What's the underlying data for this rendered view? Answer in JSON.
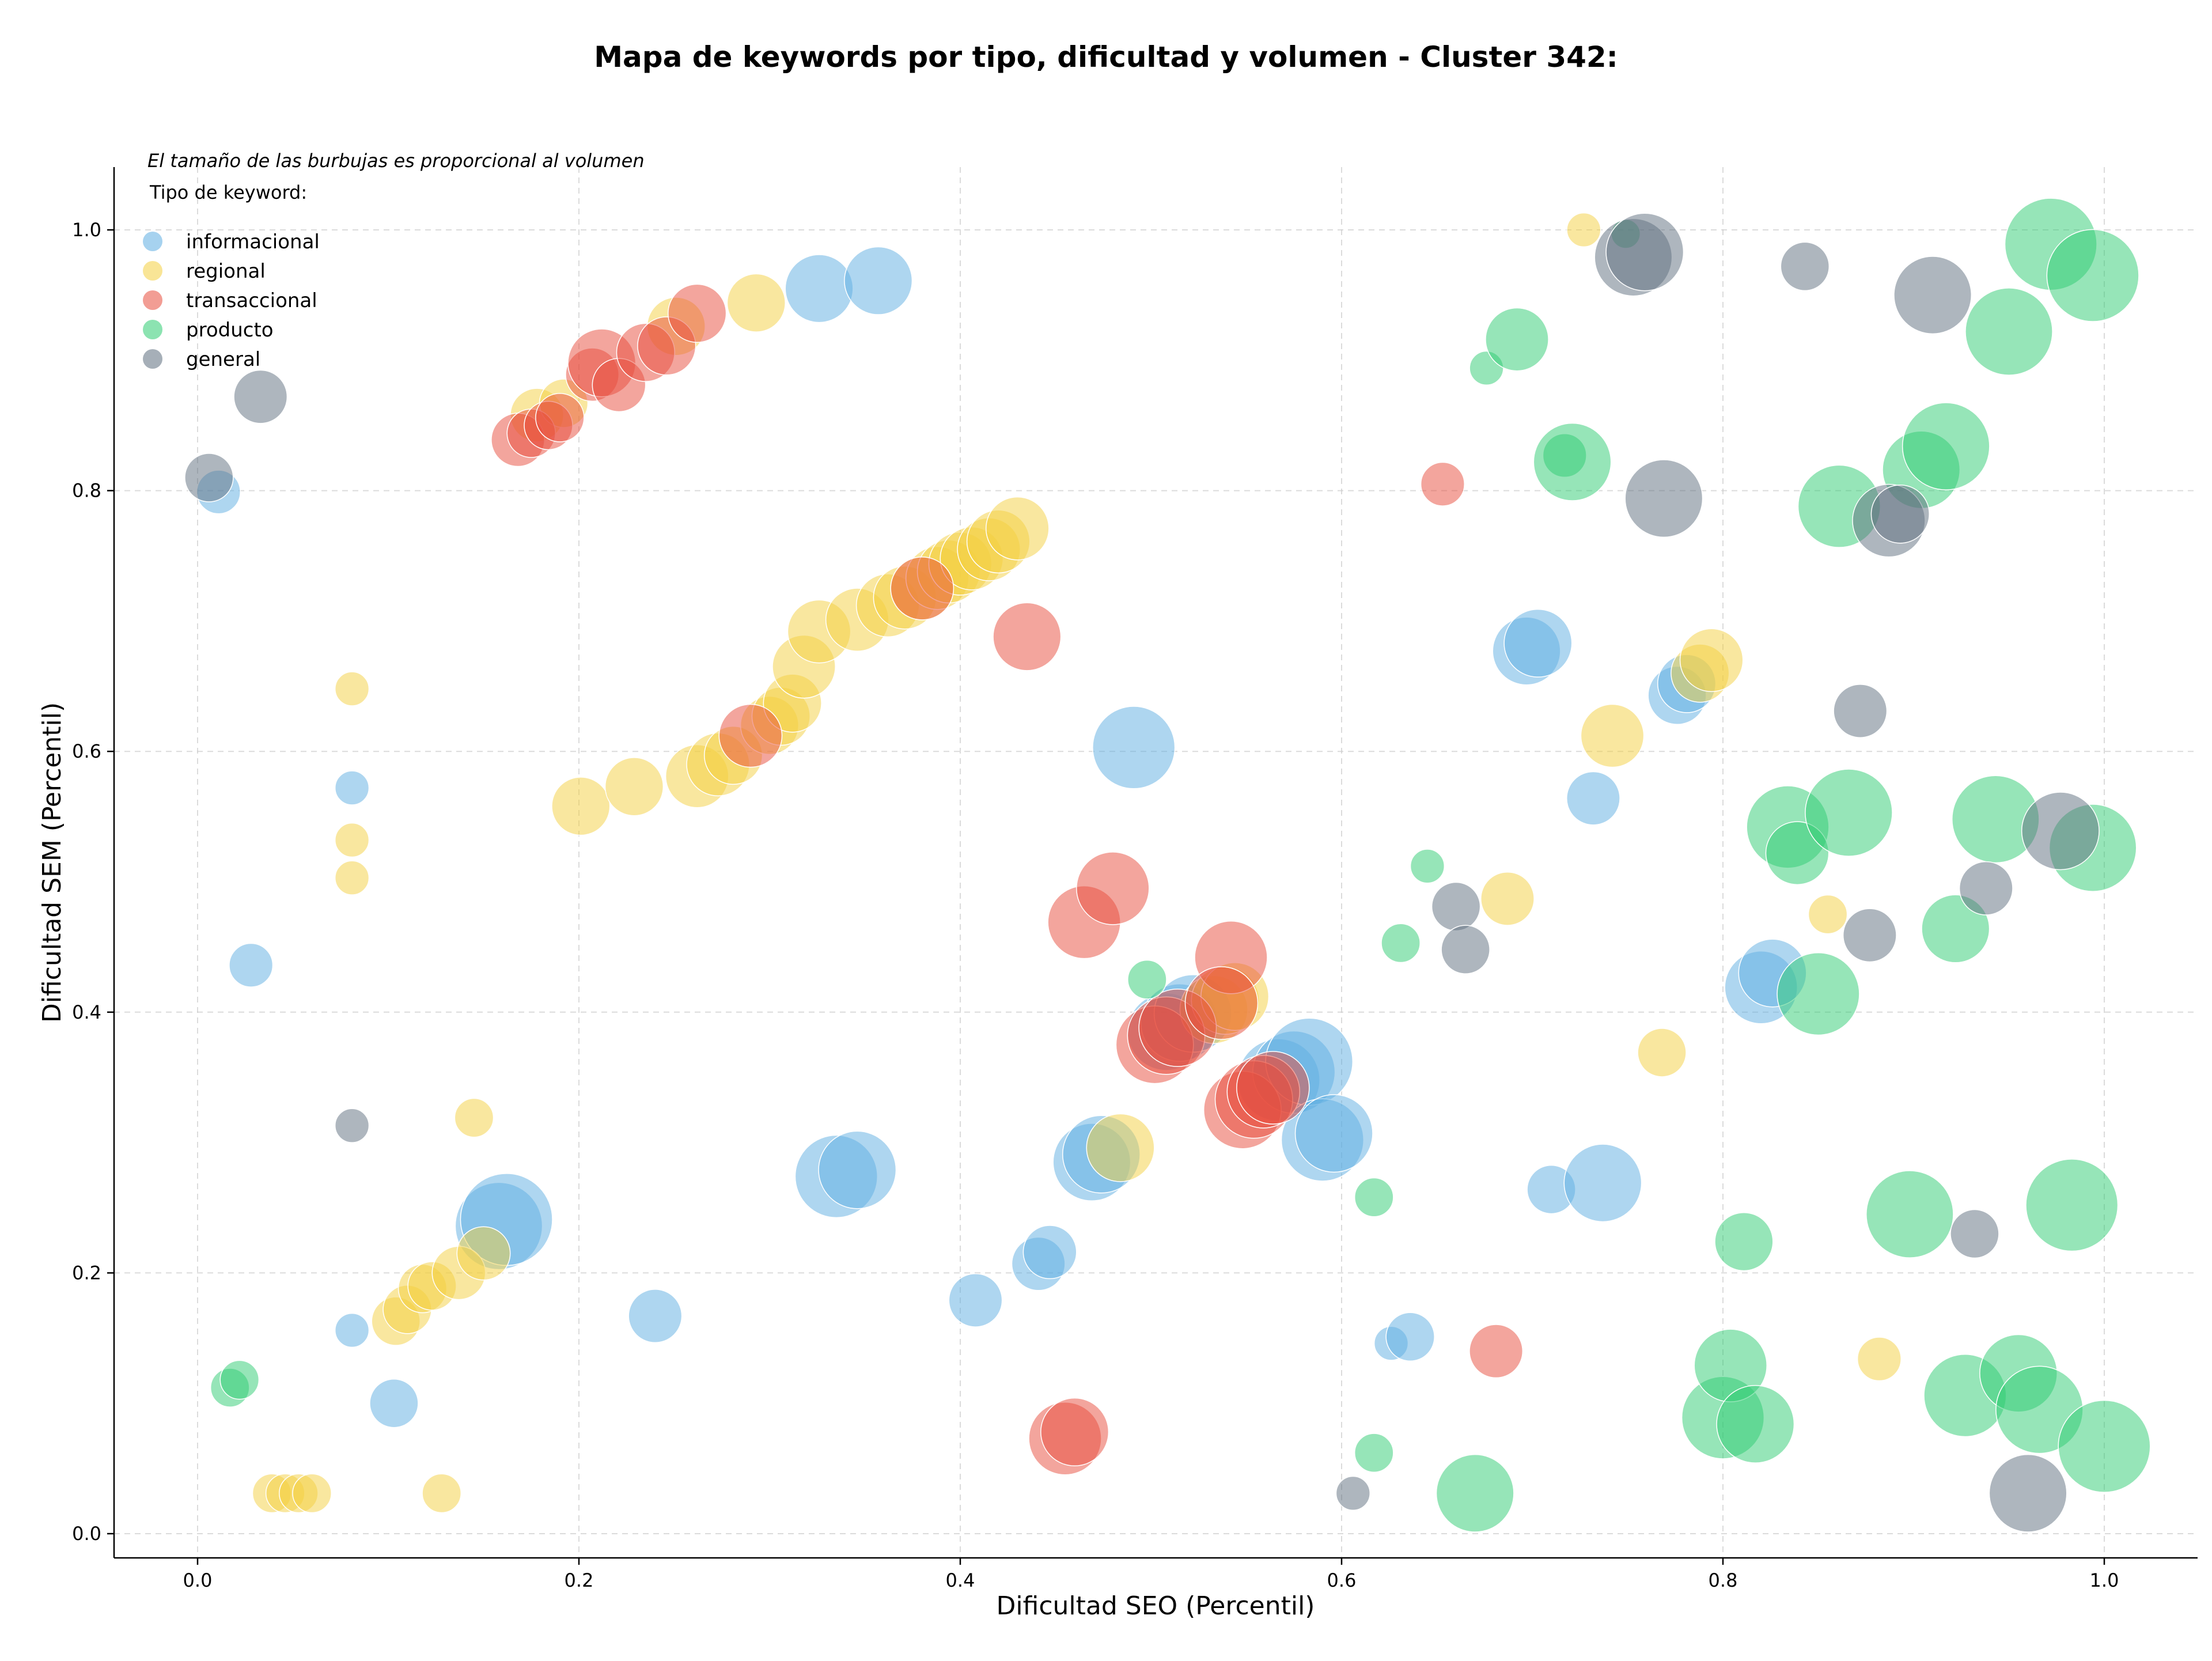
{
  "chart_data": {
    "type": "scatter",
    "title": "Mapa de keywords por tipo, dificultad y volumen - Cluster 342:",
    "xlabel": "Dificultad SEO (Percentil)",
    "ylabel": "Dificultad SEM (Percentil)",
    "xlim": [
      -0.045,
      1.05
    ],
    "ylim": [
      -0.015,
      1.05
    ],
    "xticks": [
      "0.0",
      "0.2",
      "0.4",
      "0.6",
      "0.8",
      "1.0"
    ],
    "yticks": [
      "0.0",
      "0.2",
      "0.4",
      "0.6",
      "0.8",
      "1.0"
    ],
    "grid": true,
    "note": "El tamaño de las burbujas es proporcional al volumen",
    "legend_title": "Tipo de keyword:",
    "legend_position": "top-left",
    "series": [
      {
        "name": "informacional",
        "color": "#5DADE2",
        "points": [
          [
            0.011,
            0.799,
            0.9
          ],
          [
            0.028,
            0.436,
            0.9
          ],
          [
            0.081,
            0.572,
            0.7
          ],
          [
            0.081,
            0.156,
            0.7
          ],
          [
            0.103,
            0.1,
            1.0
          ],
          [
            0.158,
            0.236,
            1.8
          ],
          [
            0.162,
            0.241,
            1.9
          ],
          [
            0.24,
            0.167,
            1.1
          ],
          [
            0.326,
            0.955,
            1.4
          ],
          [
            0.357,
            0.961,
            1.4
          ],
          [
            0.335,
            0.274,
            1.7
          ],
          [
            0.346,
            0.279,
            1.6
          ],
          [
            0.408,
            0.179,
            1.1
          ],
          [
            0.441,
            0.207,
            1.1
          ],
          [
            0.447,
            0.216,
            1.1
          ],
          [
            0.491,
            0.603,
            1.7
          ],
          [
            0.469,
            0.285,
            1.6
          ],
          [
            0.474,
            0.291,
            1.6
          ],
          [
            0.508,
            0.385,
            1.6
          ],
          [
            0.515,
            0.392,
            1.6
          ],
          [
            0.522,
            0.399,
            1.6
          ],
          [
            0.567,
            0.348,
            1.7
          ],
          [
            0.575,
            0.354,
            1.7
          ],
          [
            0.583,
            0.362,
            1.8
          ],
          [
            0.59,
            0.302,
            1.7
          ],
          [
            0.596,
            0.307,
            1.6
          ],
          [
            0.626,
            0.146,
            0.7
          ],
          [
            0.636,
            0.151,
            1.0
          ],
          [
            0.697,
            0.677,
            1.4
          ],
          [
            0.703,
            0.683,
            1.4
          ],
          [
            0.71,
            0.264,
            1.0
          ],
          [
            0.732,
            0.564,
            1.1
          ],
          [
            0.737,
            0.269,
            1.6
          ],
          [
            0.776,
            0.643,
            1.2
          ],
          [
            0.781,
            0.652,
            1.2
          ],
          [
            0.82,
            0.419,
            1.5
          ],
          [
            0.826,
            0.43,
            1.4
          ]
        ]
      },
      {
        "name": "regional",
        "color": "#F4D03F",
        "points": [
          [
            0.081,
            0.648,
            0.7
          ],
          [
            0.081,
            0.532,
            0.7
          ],
          [
            0.081,
            0.503,
            0.7
          ],
          [
            0.039,
            0.031,
            0.8
          ],
          [
            0.046,
            0.031,
            0.8
          ],
          [
            0.053,
            0.031,
            0.8
          ],
          [
            0.06,
            0.031,
            0.8
          ],
          [
            0.128,
            0.031,
            0.8
          ],
          [
            0.104,
            0.163,
            1.0
          ],
          [
            0.11,
            0.172,
            1.0
          ],
          [
            0.118,
            0.188,
            1.0
          ],
          [
            0.123,
            0.19,
            1.0
          ],
          [
            0.137,
            0.2,
            1.1
          ],
          [
            0.15,
            0.215,
            1.1
          ],
          [
            0.145,
            0.319,
            0.8
          ],
          [
            0.178,
            0.858,
            1.1
          ],
          [
            0.192,
            0.867,
            1.0
          ],
          [
            0.201,
            0.558,
            1.2
          ],
          [
            0.229,
            0.573,
            1.2
          ],
          [
            0.251,
            0.926,
            1.2
          ],
          [
            0.293,
            0.944,
            1.2
          ],
          [
            0.262,
            0.581,
            1.3
          ],
          [
            0.273,
            0.59,
            1.3
          ],
          [
            0.281,
            0.597,
            1.2
          ],
          [
            0.3,
            0.62,
            1.2
          ],
          [
            0.306,
            0.627,
            1.2
          ],
          [
            0.312,
            0.637,
            1.2
          ],
          [
            0.318,
            0.665,
            1.3
          ],
          [
            0.326,
            0.692,
            1.3
          ],
          [
            0.346,
            0.701,
            1.3
          ],
          [
            0.362,
            0.712,
            1.3
          ],
          [
            0.371,
            0.718,
            1.3
          ],
          [
            0.38,
            0.725,
            1.3
          ],
          [
            0.388,
            0.733,
            1.3
          ],
          [
            0.394,
            0.738,
            1.3
          ],
          [
            0.4,
            0.744,
            1.3
          ],
          [
            0.406,
            0.748,
            1.3
          ],
          [
            0.415,
            0.755,
            1.3
          ],
          [
            0.42,
            0.761,
            1.3
          ],
          [
            0.43,
            0.771,
            1.3
          ],
          [
            0.484,
            0.296,
            1.4
          ],
          [
            0.533,
            0.402,
            1.4
          ],
          [
            0.539,
            0.409,
            1.4
          ],
          [
            0.544,
            0.412,
            1.4
          ],
          [
            0.687,
            0.487,
            1.1
          ],
          [
            0.727,
            1.0,
            0.7
          ],
          [
            0.742,
            0.612,
            1.3
          ],
          [
            0.768,
            0.369,
            1.0
          ],
          [
            0.788,
            0.66,
            1.2
          ],
          [
            0.794,
            0.67,
            1.3
          ],
          [
            0.855,
            0.475,
            0.8
          ],
          [
            0.882,
            0.134,
            0.9
          ]
        ]
      },
      {
        "name": "transaccional",
        "color": "#E74C3C",
        "points": [
          [
            0.168,
            0.839,
            1.1
          ],
          [
            0.175,
            0.844,
            1.0
          ],
          [
            0.184,
            0.85,
            1.0
          ],
          [
            0.19,
            0.856,
            1.0
          ],
          [
            0.207,
            0.889,
            1.1
          ],
          [
            0.212,
            0.898,
            1.4
          ],
          [
            0.221,
            0.881,
            1.1
          ],
          [
            0.235,
            0.906,
            1.2
          ],
          [
            0.246,
            0.911,
            1.2
          ],
          [
            0.262,
            0.936,
            1.2
          ],
          [
            0.29,
            0.612,
            1.3
          ],
          [
            0.38,
            0.725,
            1.3
          ],
          [
            0.435,
            0.688,
            1.4
          ],
          [
            0.465,
            0.469,
            1.5
          ],
          [
            0.48,
            0.495,
            1.5
          ],
          [
            0.455,
            0.073,
            1.5
          ],
          [
            0.46,
            0.078,
            1.4
          ],
          [
            0.502,
            0.375,
            1.6
          ],
          [
            0.508,
            0.382,
            1.6
          ],
          [
            0.514,
            0.388,
            1.6
          ],
          [
            0.542,
            0.442,
            1.5
          ],
          [
            0.537,
            0.407,
            1.5
          ],
          [
            0.548,
            0.325,
            1.6
          ],
          [
            0.554,
            0.333,
            1.6
          ],
          [
            0.559,
            0.339,
            1.5
          ],
          [
            0.564,
            0.342,
            1.5
          ],
          [
            0.653,
            0.805,
            0.9
          ],
          [
            0.681,
            0.14,
            1.1
          ]
        ]
      },
      {
        "name": "producto",
        "color": "#2ECC71",
        "points": [
          [
            0.017,
            0.112,
            0.8
          ],
          [
            0.022,
            0.118,
            0.8
          ],
          [
            0.498,
            0.425,
            0.8
          ],
          [
            0.617,
            0.258,
            0.8
          ],
          [
            0.617,
            0.062,
            0.8
          ],
          [
            0.631,
            0.453,
            0.8
          ],
          [
            0.645,
            0.512,
            0.7
          ],
          [
            0.67,
            0.031,
            1.6
          ],
          [
            0.676,
            0.894,
            0.7
          ],
          [
            0.692,
            0.916,
            1.3
          ],
          [
            0.717,
            0.827,
            0.9
          ],
          [
            0.721,
            0.822,
            1.6
          ],
          [
            0.749,
            0.997,
            0.6
          ],
          [
            0.8,
            0.089,
            1.7
          ],
          [
            0.804,
            0.129,
            1.5
          ],
          [
            0.811,
            0.224,
            1.2
          ],
          [
            0.817,
            0.084,
            1.6
          ],
          [
            0.834,
            0.542,
            1.7
          ],
          [
            0.839,
            0.522,
            1.3
          ],
          [
            0.85,
            0.414,
            1.7
          ],
          [
            0.861,
            0.788,
            1.7
          ],
          [
            0.866,
            0.553,
            1.8
          ],
          [
            0.898,
            0.245,
            1.8
          ],
          [
            0.904,
            0.816,
            1.6
          ],
          [
            0.917,
            0.834,
            1.8
          ],
          [
            0.922,
            0.464,
            1.4
          ],
          [
            0.927,
            0.106,
            1.7
          ],
          [
            0.943,
            0.548,
            1.8
          ],
          [
            0.95,
            0.922,
            1.8
          ],
          [
            0.955,
            0.123,
            1.6
          ],
          [
            0.966,
            0.095,
            1.8
          ],
          [
            0.972,
            0.989,
            1.9
          ],
          [
            0.983,
            0.252,
            1.9
          ],
          [
            0.994,
            0.965,
            1.9
          ],
          [
            0.994,
            0.526,
            1.8
          ],
          [
            1.0,
            0.067,
            1.9
          ]
        ]
      },
      {
        "name": "general",
        "color": "#5D6D7E",
        "points": [
          [
            0.006,
            0.81,
            1.0
          ],
          [
            0.033,
            0.872,
            1.1
          ],
          [
            0.081,
            0.313,
            0.7
          ],
          [
            0.606,
            0.031,
            0.7
          ],
          [
            0.66,
            0.481,
            1.0
          ],
          [
            0.665,
            0.448,
            1.0
          ],
          [
            0.753,
            0.979,
            1.6
          ],
          [
            0.759,
            0.983,
            1.6
          ],
          [
            0.769,
            0.794,
            1.6
          ],
          [
            0.843,
            0.972,
            1.0
          ],
          [
            0.872,
            0.631,
            1.1
          ],
          [
            0.877,
            0.459,
            1.1
          ],
          [
            0.887,
            0.777,
            1.5
          ],
          [
            0.893,
            0.782,
            1.2
          ],
          [
            0.91,
            0.95,
            1.6
          ],
          [
            0.932,
            0.23,
            1.0
          ],
          [
            0.938,
            0.495,
            1.1
          ],
          [
            0.96,
            0.031,
            1.6
          ],
          [
            0.977,
            0.539,
            1.6
          ]
        ]
      }
    ]
  }
}
